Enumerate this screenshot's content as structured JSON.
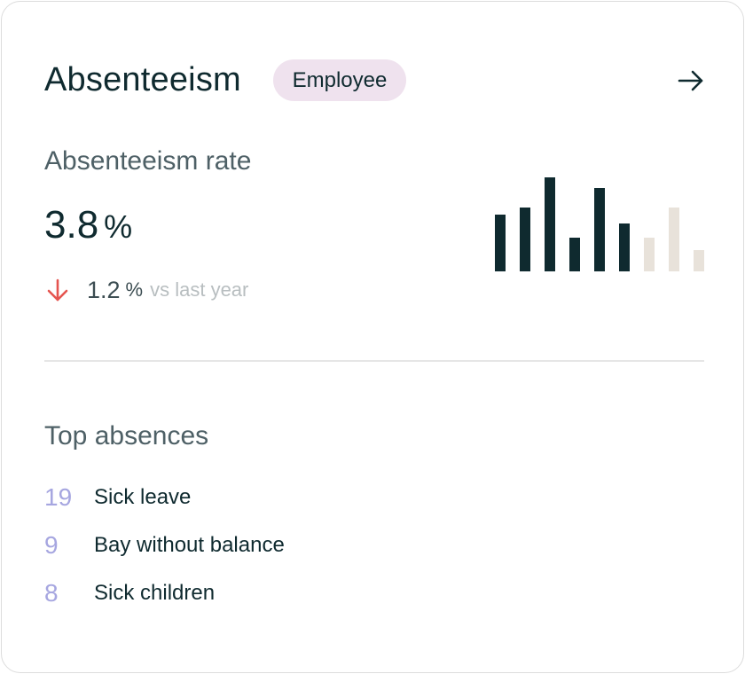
{
  "card": {
    "title": "Absenteeism",
    "badge": "Employee",
    "open_icon": "arrow-right-icon"
  },
  "rate": {
    "label": "Absenteeism rate",
    "value": "3.8",
    "unit": "%",
    "change": {
      "direction_icon": "arrow-down-icon",
      "value": "1.2",
      "unit": "%",
      "comparison": "vs last year"
    }
  },
  "chart_data": {
    "type": "bar",
    "categories": [
      "1",
      "2",
      "3",
      "4",
      "5",
      "6",
      "7",
      "8",
      "9"
    ],
    "values": [
      64,
      72,
      106,
      38,
      94,
      54,
      38,
      72,
      24
    ],
    "ylim": [
      0,
      106
    ],
    "highlighted_count": 6,
    "colors": {
      "active": "#0f2a2f",
      "inactive": "#e8e2da"
    },
    "title": "",
    "xlabel": "",
    "ylabel": ""
  },
  "top_absences": {
    "label": "Top absences",
    "items": [
      {
        "count": "19",
        "name": "Sick leave"
      },
      {
        "count": "9",
        "name": "Bay without balance"
      },
      {
        "count": "8",
        "name": "Sick children"
      }
    ]
  },
  "colors": {
    "text_primary": "#0f2a2f",
    "badge_bg": "#efe2ee",
    "decrease": "#e5544f",
    "count_accent": "#a6a6e0"
  }
}
